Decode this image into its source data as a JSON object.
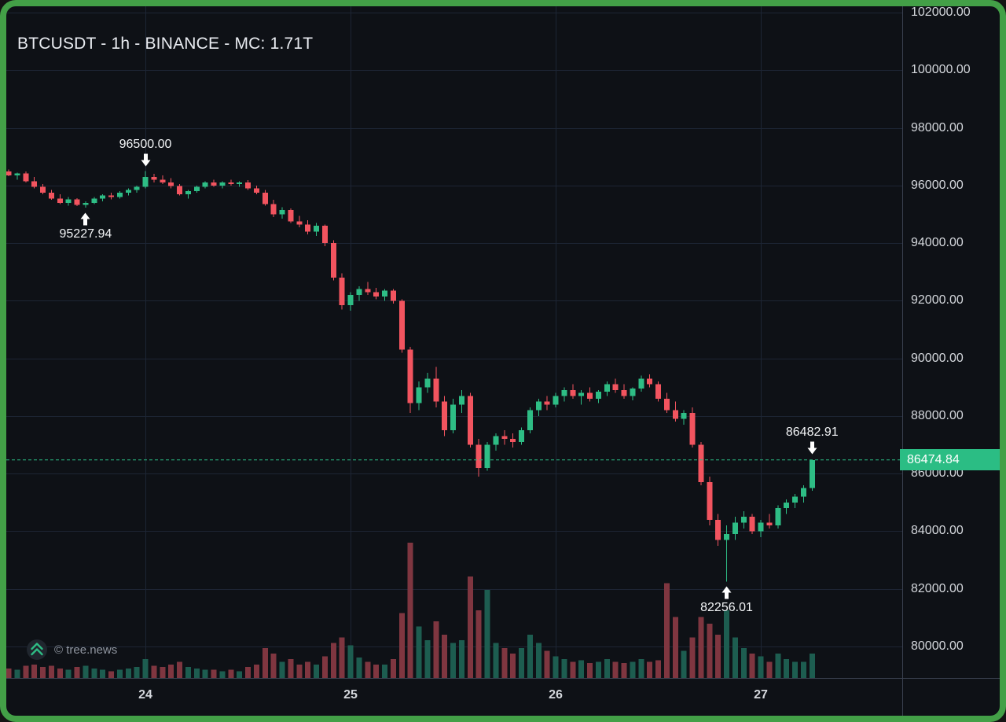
{
  "meta": {
    "title": "BTCUSDT - 1h - BINANCE - MC: 1.71T"
  },
  "watermark": {
    "label": "© tree.news",
    "icon": "double-chevron-up-icon"
  },
  "price_tag": {
    "value": "86474.84"
  },
  "colors": {
    "frame": "#43a047",
    "background": "#0e1116",
    "grid": "#1d2534",
    "up": "#2ebd85",
    "down": "#f2545f",
    "vol_up": "#1d5d50",
    "vol_down": "#7f3640",
    "price_line": "#2bbd84",
    "tag_bg": "#2bbd84",
    "axis_text": "#d5d8dd",
    "annotation": "#ffffff"
  },
  "chart_data": {
    "type": "candlestick",
    "title": "BTCUSDT - 1h - BINANCE - MC: 1.71T",
    "symbol": "BTCUSDT",
    "interval": "1h",
    "exchange": "BINANCE",
    "market_cap": "1.71T",
    "current_price": 86474.84,
    "ylim": [
      80000,
      102000
    ],
    "y_ticks": [
      102000,
      100000,
      98000,
      96000,
      94000,
      92000,
      90000,
      88000,
      86000,
      84000,
      82000,
      80000
    ],
    "x_ticks": [
      {
        "label": "24",
        "index": 17
      },
      {
        "label": "25",
        "index": 41
      },
      {
        "label": "26",
        "index": 65
      },
      {
        "label": "27",
        "index": 89
      }
    ],
    "annotations": [
      {
        "label": "96500.00",
        "index": 17,
        "price": 96500.0,
        "type": "high"
      },
      {
        "label": "95227.94",
        "index": 10,
        "price": 95227.94,
        "type": "low"
      },
      {
        "label": "86482.91",
        "index": 95,
        "price": 86482.91,
        "type": "high"
      },
      {
        "label": "82256.01",
        "index": 85,
        "price": 82256.01,
        "type": "low"
      }
    ],
    "candles": [
      [
        96560,
        96660,
        96410,
        96460
      ],
      [
        96480,
        96560,
        96320,
        96350
      ],
      [
        96350,
        96450,
        96200,
        96420
      ],
      [
        96420,
        96480,
        96100,
        96150
      ],
      [
        96150,
        96300,
        95900,
        95950
      ],
      [
        95950,
        96050,
        95700,
        95750
      ],
      [
        95750,
        95850,
        95500,
        95550
      ],
      [
        95550,
        95700,
        95350,
        95400
      ],
      [
        95400,
        95600,
        95300,
        95520
      ],
      [
        95520,
        95560,
        95280,
        95320
      ],
      [
        95320,
        95450,
        95227.94,
        95400
      ],
      [
        95400,
        95600,
        95350,
        95550
      ],
      [
        95550,
        95700,
        95450,
        95650
      ],
      [
        95650,
        95750,
        95520,
        95600
      ],
      [
        95600,
        95800,
        95550,
        95750
      ],
      [
        95750,
        95900,
        95650,
        95850
      ],
      [
        95850,
        96000,
        95750,
        95950
      ],
      [
        95950,
        96500,
        95900,
        96300
      ],
      [
        96300,
        96400,
        96100,
        96200
      ],
      [
        96200,
        96350,
        96050,
        96100
      ],
      [
        96100,
        96250,
        95900,
        95980
      ],
      [
        95980,
        96050,
        95650,
        95700
      ],
      [
        95700,
        95850,
        95550,
        95800
      ],
      [
        95800,
        96000,
        95750,
        95950
      ],
      [
        95950,
        96150,
        95900,
        96100
      ],
      [
        96100,
        96200,
        95950,
        96000
      ],
      [
        96000,
        96150,
        95900,
        96100
      ],
      [
        96100,
        96200,
        96000,
        96050
      ],
      [
        96050,
        96150,
        95950,
        96100
      ],
      [
        96100,
        96180,
        95850,
        95900
      ],
      [
        95900,
        96000,
        95700,
        95750
      ],
      [
        95750,
        95850,
        95300,
        95350
      ],
      [
        95350,
        95500,
        94900,
        95000
      ],
      [
        95000,
        95250,
        94850,
        95150
      ],
      [
        95150,
        95200,
        94700,
        94750
      ],
      [
        94750,
        94950,
        94550,
        94650
      ],
      [
        94650,
        94800,
        94300,
        94400
      ],
      [
        94400,
        94700,
        94250,
        94600
      ],
      [
        94600,
        94650,
        93900,
        94000
      ],
      [
        94000,
        94100,
        92700,
        92800
      ],
      [
        92800,
        92950,
        91700,
        91850
      ],
      [
        91850,
        92300,
        91650,
        92200
      ],
      [
        92200,
        92500,
        92000,
        92400
      ],
      [
        92400,
        92650,
        92200,
        92300
      ],
      [
        92300,
        92450,
        92050,
        92150
      ],
      [
        92150,
        92400,
        92000,
        92350
      ],
      [
        92350,
        92400,
        91900,
        92000
      ],
      [
        92000,
        92050,
        90200,
        90300
      ],
      [
        90300,
        90400,
        88100,
        88450
      ],
      [
        88450,
        89200,
        88200,
        89000
      ],
      [
        89000,
        89500,
        88800,
        89300
      ],
      [
        89300,
        89700,
        88300,
        88500
      ],
      [
        88500,
        88700,
        87300,
        87500
      ],
      [
        87500,
        88600,
        87400,
        88400
      ],
      [
        88400,
        88900,
        88100,
        88700
      ],
      [
        88700,
        88800,
        86900,
        87000
      ],
      [
        87000,
        87200,
        85900,
        86200
      ],
      [
        86200,
        87100,
        86100,
        87000
      ],
      [
        87000,
        87400,
        86800,
        87300
      ],
      [
        87300,
        87500,
        87000,
        87200
      ],
      [
        87200,
        87400,
        86900,
        87100
      ],
      [
        87100,
        87600,
        87000,
        87500
      ],
      [
        87500,
        88300,
        87400,
        88200
      ],
      [
        88200,
        88600,
        88000,
        88500
      ],
      [
        88500,
        88700,
        88200,
        88400
      ],
      [
        88400,
        88800,
        88300,
        88700
      ],
      [
        88700,
        89000,
        88500,
        88900
      ],
      [
        88900,
        89100,
        88600,
        88700
      ],
      [
        88700,
        88900,
        88400,
        88800
      ],
      [
        88800,
        89000,
        88500,
        88600
      ],
      [
        88600,
        88900,
        88450,
        88850
      ],
      [
        88850,
        89200,
        88700,
        89100
      ],
      [
        89100,
        89300,
        88800,
        88900
      ],
      [
        88900,
        89100,
        88600,
        88700
      ],
      [
        88700,
        89000,
        88550,
        88950
      ],
      [
        88950,
        89400,
        88850,
        89300
      ],
      [
        89300,
        89450,
        89000,
        89100
      ],
      [
        89100,
        89200,
        88500,
        88600
      ],
      [
        88600,
        88800,
        88100,
        88200
      ],
      [
        88200,
        88500,
        87800,
        87900
      ],
      [
        87900,
        88200,
        87700,
        88100
      ],
      [
        88100,
        88300,
        86900,
        87000
      ],
      [
        87000,
        87100,
        85600,
        85700
      ],
      [
        85700,
        85900,
        84200,
        84400
      ],
      [
        84400,
        84600,
        83500,
        83700
      ],
      [
        83700,
        84200,
        82256.01,
        83900
      ],
      [
        83900,
        84500,
        83700,
        84300
      ],
      [
        84300,
        84700,
        84100,
        84500
      ],
      [
        84500,
        84600,
        83900,
        84000
      ],
      [
        84000,
        84400,
        83800,
        84300
      ],
      [
        84300,
        84600,
        84100,
        84200
      ],
      [
        84200,
        84900,
        84100,
        84800
      ],
      [
        84800,
        85100,
        84600,
        85000
      ],
      [
        85000,
        85300,
        84800,
        85200
      ],
      [
        85200,
        85600,
        85000,
        85500
      ],
      [
        85500,
        86482.91,
        85400,
        86474.84
      ]
    ],
    "volumes": [
      8,
      7,
      6,
      9,
      10,
      8,
      9,
      7,
      6,
      8,
      9,
      7,
      6,
      5,
      6,
      7,
      8,
      14,
      9,
      8,
      10,
      12,
      8,
      7,
      6,
      6,
      5,
      6,
      5,
      8,
      10,
      22,
      18,
      12,
      14,
      10,
      12,
      10,
      16,
      26,
      30,
      24,
      15,
      12,
      10,
      10,
      14,
      48,
      100,
      38,
      28,
      42,
      32,
      26,
      28,
      75,
      50,
      65,
      26,
      22,
      18,
      22,
      32,
      26,
      20,
      16,
      14,
      12,
      13,
      11,
      12,
      14,
      12,
      11,
      12,
      14,
      12,
      13,
      70,
      45,
      20,
      30,
      45,
      40,
      32,
      50,
      30,
      22,
      18,
      16,
      12,
      18,
      14,
      12,
      12,
      18
    ]
  }
}
